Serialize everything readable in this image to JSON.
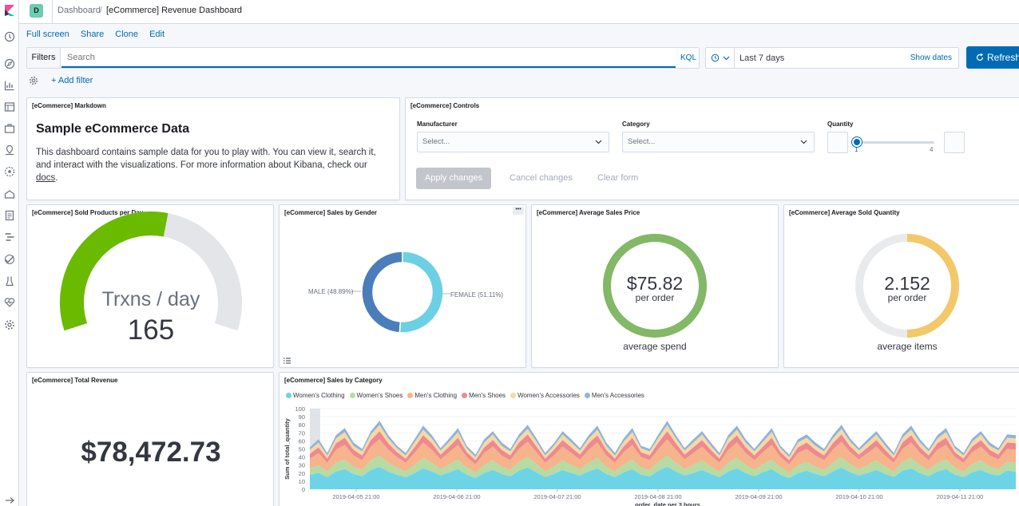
{
  "header": {
    "space_initial": "D",
    "breadcrumb_root": "Dashboard",
    "breadcrumb_sep": "/",
    "breadcrumb_current": "[eCommerce] Revenue Dashboard"
  },
  "top_menu": [
    "Full screen",
    "Share",
    "Clone",
    "Edit"
  ],
  "filter_bar": {
    "filters_label": "Filters",
    "search_placeholder": "Search",
    "kql_label": "KQL",
    "date_range": "Last 7 days",
    "show_dates": "Show dates",
    "refresh_label": "Refresh",
    "add_filter": "+ Add filter"
  },
  "markdown_panel": {
    "title": "[eCommerce] Markdown",
    "heading": "Sample eCommerce Data",
    "body_pre": "This dashboard contains sample data for you to play with. You can view it, search it, and interact with the visualizations. For more information about Kibana, check our ",
    "link_text": "docs",
    "body_post": "."
  },
  "controls_panel": {
    "title": "[eCommerce] Controls",
    "manufacturer_label": "Manufacturer",
    "manufacturer_placeholder": "Select...",
    "category_label": "Category",
    "category_placeholder": "Select...",
    "quantity_label": "Quantity",
    "quantity_min": "1",
    "quantity_max": "4",
    "apply": "Apply changes",
    "cancel": "Cancel changes",
    "clear": "Clear form"
  },
  "sold_products_panel": {
    "title": "[eCommerce] Sold Products per Day",
    "label": "Trxns / day",
    "value": "165",
    "gauge_fraction": 0.55,
    "color": "#6aba00"
  },
  "gender_panel": {
    "title": "[eCommerce] Sales by Gender",
    "menu": "•••",
    "slices": [
      {
        "label": "MALE (48.89%)",
        "value": 48.89,
        "color": "#4a7ebb"
      },
      {
        "label": "FEMALE (51.11%)",
        "value": 51.11,
        "color": "#6dcfe3"
      }
    ]
  },
  "avg_price_panel": {
    "title": "[eCommerce] Average Sales Price",
    "value": "$75.82",
    "sub": "per order",
    "caption": "average spend",
    "fraction": 1.0,
    "color": "#82b866"
  },
  "avg_qty_panel": {
    "title": "[eCommerce] Average Sold Quantity",
    "value": "2.152",
    "sub": "per order",
    "caption": "average items",
    "fraction": 0.5,
    "color": "#f2c869"
  },
  "revenue_panel": {
    "title": "[eCommerce] Total Revenue",
    "value": "$78,472.73"
  },
  "category_panel": {
    "title": "[eCommerce] Sales by Category",
    "chart_data": {
      "type": "area",
      "stacked": true,
      "ylabel": "Sum of total_quantity",
      "xlabel": "order_date per 3 hours",
      "ylim": [
        0,
        100
      ],
      "yticks": [
        0,
        10,
        20,
        30,
        40,
        50,
        60,
        70,
        80,
        90,
        100
      ],
      "xticks": [
        "2019-04-05 21:00",
        "2019-04-06 21:00",
        "2019-04-07 21:00",
        "2019-04-08 21:00",
        "2019-04-09 21:00",
        "2019-04-10 21:00",
        "2019-04-11 21:00"
      ],
      "legend_position": "top-left",
      "series": [
        {
          "name": "Women's Clothing",
          "color": "#6dd4e7",
          "values": [
            18,
            20,
            15,
            22,
            25,
            19,
            16,
            24,
            28,
            22,
            18,
            15,
            20,
            26,
            22,
            17,
            21,
            25,
            18,
            14,
            20,
            24,
            19,
            16,
            23,
            27,
            21,
            15,
            19,
            24,
            20,
            17,
            22,
            26,
            19,
            15,
            21,
            25,
            18,
            16,
            23,
            28,
            22,
            17,
            20,
            24,
            19,
            15,
            22,
            26,
            20,
            16,
            21,
            25,
            18,
            14,
            20,
            23,
            19,
            16,
            22,
            27,
            21,
            17,
            20,
            24,
            19,
            15,
            23,
            26,
            20,
            16,
            22,
            25,
            18,
            15,
            21,
            24,
            19,
            17,
            23,
            22
          ]
        },
        {
          "name": "Women's Shoes",
          "color": "#b6dba3",
          "values": [
            8,
            10,
            7,
            11,
            12,
            9,
            8,
            12,
            14,
            11,
            9,
            7,
            10,
            13,
            11,
            8,
            10,
            12,
            9,
            7,
            10,
            12,
            9,
            8,
            11,
            13,
            10,
            7,
            9,
            12,
            10,
            8,
            11,
            13,
            9,
            7,
            10,
            12,
            9,
            8,
            11,
            14,
            11,
            8,
            10,
            12,
            9,
            7,
            11,
            13,
            10,
            8,
            10,
            12,
            9,
            7,
            10,
            11,
            9,
            8,
            11,
            13,
            10,
            8,
            10,
            12,
            9,
            7,
            11,
            13,
            10,
            8,
            11,
            12,
            9,
            7,
            10,
            12,
            9,
            8,
            11,
            11
          ]
        },
        {
          "name": "Men's Clothing",
          "color": "#f5b48c",
          "values": [
            12,
            15,
            11,
            16,
            18,
            14,
            12,
            17,
            20,
            16,
            13,
            11,
            15,
            19,
            16,
            12,
            15,
            18,
            13,
            10,
            15,
            17,
            14,
            12,
            16,
            19,
            15,
            11,
            14,
            17,
            15,
            12,
            16,
            19,
            14,
            11,
            15,
            18,
            13,
            12,
            16,
            20,
            16,
            12,
            15,
            17,
            14,
            11,
            16,
            19,
            15,
            12,
            15,
            18,
            13,
            10,
            15,
            16,
            14,
            12,
            16,
            19,
            15,
            12,
            15,
            17,
            14,
            11,
            16,
            19,
            15,
            12,
            16,
            18,
            13,
            11,
            15,
            17,
            14,
            12,
            16,
            16
          ]
        },
        {
          "name": "Men's Shoes",
          "color": "#ee8a8f",
          "values": [
            6,
            7,
            5,
            8,
            9,
            7,
            6,
            8,
            10,
            8,
            6,
            5,
            7,
            9,
            8,
            6,
            7,
            9,
            6,
            5,
            7,
            8,
            7,
            6,
            8,
            9,
            7,
            5,
            7,
            8,
            7,
            6,
            8,
            9,
            7,
            5,
            7,
            9,
            6,
            6,
            8,
            10,
            8,
            6,
            7,
            8,
            7,
            5,
            8,
            9,
            7,
            6,
            7,
            9,
            6,
            5,
            7,
            8,
            7,
            6,
            8,
            9,
            7,
            6,
            7,
            8,
            7,
            5,
            8,
            9,
            7,
            6,
            8,
            9,
            6,
            5,
            7,
            8,
            7,
            6,
            8,
            8
          ]
        },
        {
          "name": "Women's Accessories",
          "color": "#f6d9a3",
          "values": [
            5,
            6,
            4,
            6,
            7,
            5,
            5,
            7,
            8,
            6,
            5,
            4,
            6,
            7,
            6,
            5,
            6,
            7,
            5,
            4,
            6,
            7,
            5,
            5,
            6,
            7,
            6,
            4,
            5,
            7,
            6,
            5,
            6,
            7,
            5,
            4,
            6,
            7,
            5,
            5,
            6,
            8,
            6,
            5,
            6,
            7,
            5,
            4,
            6,
            7,
            6,
            5,
            6,
            7,
            5,
            4,
            6,
            6,
            5,
            5,
            6,
            7,
            6,
            5,
            6,
            7,
            5,
            4,
            6,
            7,
            6,
            5,
            6,
            7,
            5,
            4,
            6,
            7,
            5,
            5,
            6,
            6
          ]
        },
        {
          "name": "Men's Accessories",
          "color": "#8fb3de",
          "values": [
            3,
            4,
            3,
            4,
            5,
            4,
            3,
            4,
            5,
            4,
            3,
            3,
            4,
            5,
            4,
            3,
            4,
            5,
            3,
            3,
            4,
            4,
            4,
            3,
            4,
            5,
            4,
            3,
            3,
            4,
            4,
            3,
            4,
            5,
            4,
            3,
            4,
            5,
            3,
            3,
            4,
            5,
            4,
            3,
            4,
            4,
            4,
            3,
            4,
            5,
            4,
            3,
            4,
            5,
            3,
            3,
            4,
            4,
            4,
            3,
            4,
            5,
            4,
            3,
            4,
            4,
            4,
            3,
            4,
            5,
            4,
            3,
            4,
            5,
            3,
            3,
            4,
            4,
            4,
            3,
            4,
            4
          ]
        }
      ]
    }
  }
}
